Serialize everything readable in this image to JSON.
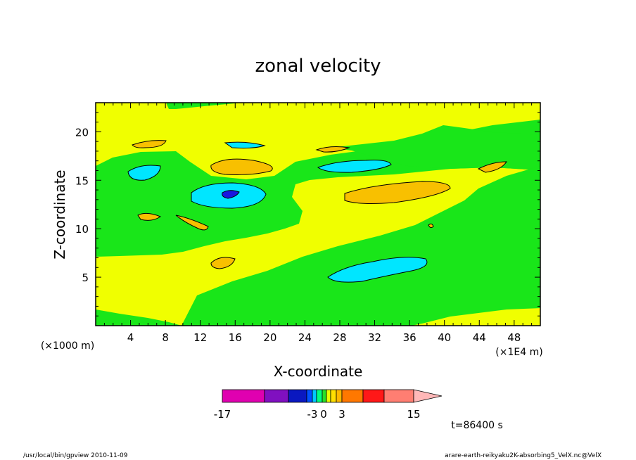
{
  "chart_data": {
    "type": "heatmap",
    "title": "zonal velocity",
    "xlabel": "X-coordinate",
    "ylabel": "Z-coordinate",
    "x_scale_label": "(×1E4 m)",
    "y_scale_label": "(×1000 m)",
    "xlim": [
      0,
      51
    ],
    "ylim": [
      0,
      23
    ],
    "x_ticks": [
      4,
      8,
      12,
      16,
      20,
      24,
      28,
      32,
      36,
      40,
      44,
      48
    ],
    "y_ticks": [
      5,
      10,
      15,
      20
    ],
    "colorbar": {
      "labels": [
        "-17",
        "-3",
        "0",
        "3",
        "15"
      ],
      "colors": [
        "#e000b0",
        "#8010c0",
        "#0a18c0",
        "#0050ff",
        "#00c8ff",
        "#00ff80",
        "#28e028",
        "#e8ff00",
        "#ffe000",
        "#ffb800",
        "#ff7800",
        "#ff1818",
        "#ff7e72",
        "#ffb8b8"
      ]
    },
    "levels": {
      "green": "#19e619",
      "yellow": "#f0ff00",
      "orange": "#f8c000",
      "cyan": "#00e6ff",
      "blue": "#1818e0"
    },
    "time_label": "t=86400 s"
  },
  "footer": {
    "left": "/usr/local/bin/gpview  2010-11-09",
    "right": "arare-earth-reikyaku2K-absorbing5_VelX.nc@VelX"
  }
}
